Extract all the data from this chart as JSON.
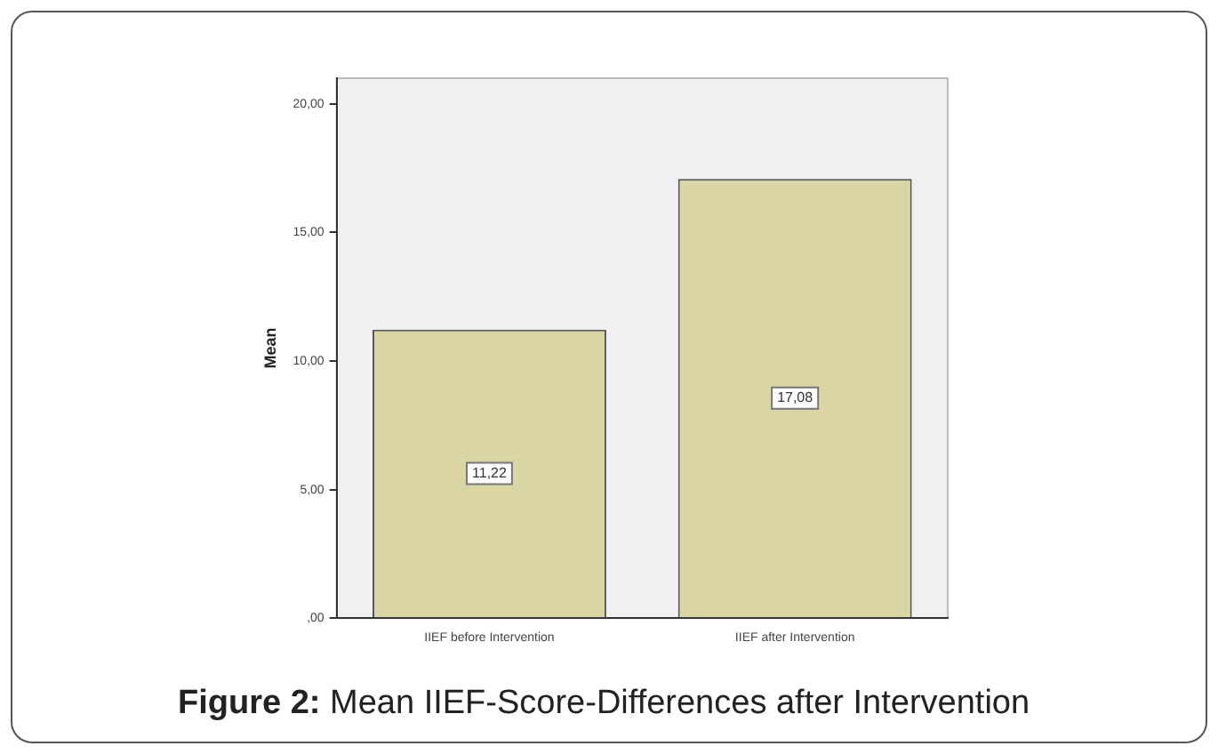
{
  "chart_data": {
    "type": "bar",
    "ylabel": "Mean",
    "categories": [
      "IIEF before Intervention",
      "IIEF after Intervention"
    ],
    "values": [
      11.22,
      17.08
    ],
    "color": "#d9d5a5",
    "value_labels": [
      "11,22",
      "17,08"
    ],
    "ylim": [
      0,
      21
    ],
    "yticks": [
      {
        "value": 0,
        "label": ",00"
      },
      {
        "value": 5,
        "label": "5,00"
      },
      {
        "value": 10,
        "label": "10,00"
      },
      {
        "value": 15,
        "label": "15,00"
      },
      {
        "value": 20,
        "label": "20,00"
      }
    ],
    "grid": false,
    "legend": false,
    "annotations": [
      "Figure 2: Mean IIEF-Score-Differences after Intervention"
    ]
  }
}
